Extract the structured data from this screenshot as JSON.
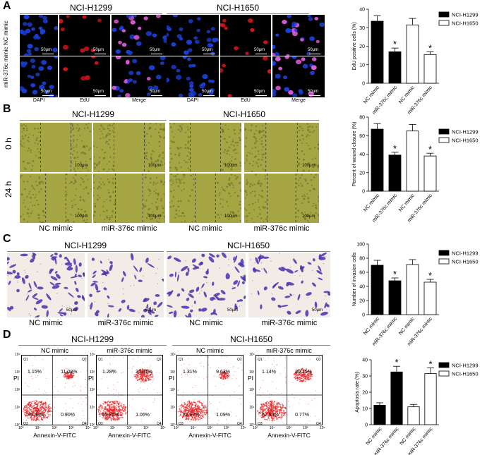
{
  "panels": {
    "A": {
      "label": "A",
      "headers": [
        "NCI-H1299",
        "NCI-H1650"
      ],
      "row_labels": [
        "NC mimic",
        "miR-376c mimic"
      ],
      "col_labels": [
        "DAPI",
        "EdU",
        "Merge",
        "DAPI",
        "EdU",
        "Merge"
      ],
      "scale": "50μm"
    },
    "B": {
      "label": "B",
      "headers": [
        "NCI-H1299",
        "NCI-H1650"
      ],
      "row_labels": [
        "0 h",
        "24 h"
      ],
      "col_labels": [
        "NC mimic",
        "miR-376c mimic",
        "NC mimic",
        "miR-376c mimic"
      ],
      "scale": "100μm"
    },
    "C": {
      "label": "C",
      "headers": [
        "NCI-H1299",
        "NCI-H1650"
      ],
      "col_labels": [
        "NC mimic",
        "miR-376c mimic",
        "NC mimic",
        "miR-376c mimic"
      ],
      "scale": "50μm"
    },
    "D": {
      "label": "D",
      "headers": [
        "NCI-H1299",
        "NCI-H1650"
      ],
      "plot_titles": [
        "NC mimic",
        "miR-376c mimic",
        "NC mimic",
        "miR-376c mimic"
      ],
      "xlabel": "Annexin-V-FITC",
      "ylabel": "PI",
      "quadrants": [
        {
          "q1": "1.15%",
          "q2": "11.08%",
          "q3": "86.88%",
          "q4": "0.90%"
        },
        {
          "q1": "1.28%",
          "q2": "31.81%",
          "q3": "65.85%",
          "q4": "1.06%"
        },
        {
          "q1": "1.31%",
          "q2": "9.63%",
          "q3": "87.97%",
          "q4": "1.09%"
        },
        {
          "q1": "1.14%",
          "q2": "30.15%",
          "q3": "67.94%",
          "q4": "0.77%"
        }
      ],
      "quad_ids": [
        "Q1",
        "Q2",
        "Q3",
        "Q4"
      ],
      "ticks": [
        "10⁰",
        "10¹",
        "10²",
        "10³",
        "10⁴"
      ]
    }
  },
  "legend": {
    "h1299": "NCI-H1299",
    "h1650": "NCI-H1650"
  },
  "colors": {
    "h1299": "#000000",
    "h1650": "#ffffff",
    "dapi": "#1a3fd8",
    "edu": "#d8141a",
    "crystal_violet": "#4a2fb0",
    "flow_dots": "#e8282a",
    "wound_bg": "#a5a544"
  },
  "chart_data": [
    {
      "type": "bar",
      "categories": [
        "NC mimic",
        "miR-376c mimic",
        "NC mimic",
        "miR-376c mimic"
      ],
      "series": [
        {
          "name": "NCI-H1299",
          "values": [
            33.5,
            17,
            null,
            null
          ],
          "errors": [
            3,
            2,
            null,
            null
          ]
        },
        {
          "name": "NCI-H1650",
          "values": [
            null,
            null,
            31.5,
            15.5
          ],
          "errors": [
            null,
            null,
            3.5,
            1.5
          ]
        }
      ],
      "significance": [
        "",
        "*",
        "",
        "*"
      ],
      "ylabel": "EdU positive cells (%)",
      "ylim": [
        0,
        40
      ],
      "yticks": [
        0,
        10,
        20,
        30,
        40
      ]
    },
    {
      "type": "bar",
      "categories": [
        "NC mimic",
        "miR-376c mimic",
        "NC mimic",
        "miR-376c mimic"
      ],
      "series": [
        {
          "name": "NCI-H1299",
          "values": [
            67,
            39,
            null,
            null
          ],
          "errors": [
            6,
            3,
            null,
            null
          ]
        },
        {
          "name": "NCI-H1650",
          "values": [
            null,
            null,
            65,
            38
          ],
          "errors": [
            null,
            null,
            7,
            3
          ]
        }
      ],
      "significance": [
        "",
        "*",
        "",
        "*"
      ],
      "ylabel": "Percent of wound closure (%)",
      "ylim": [
        0,
        80
      ],
      "yticks": [
        0,
        20,
        40,
        60,
        80
      ]
    },
    {
      "type": "bar",
      "categories": [
        "NC mimic",
        "miR-376c mimic",
        "NC mimic",
        "miR-376c mimic"
      ],
      "series": [
        {
          "name": "NCI-H1299",
          "values": [
            70,
            48,
            null,
            null
          ],
          "errors": [
            7,
            4,
            null,
            null
          ]
        },
        {
          "name": "NCI-H1650",
          "values": [
            null,
            null,
            71,
            46
          ],
          "errors": [
            null,
            null,
            7,
            4
          ]
        }
      ],
      "significance": [
        "",
        "*",
        "",
        "*"
      ],
      "ylabel": "Number of invasion cells",
      "ylim": [
        0,
        100
      ],
      "yticks": [
        0,
        20,
        40,
        60,
        80,
        100
      ]
    },
    {
      "type": "bar",
      "categories": [
        "NC mimic",
        "miR-376c mimic",
        "NC mimic",
        "miR-376c mimic"
      ],
      "series": [
        {
          "name": "NCI-H1299",
          "values": [
            12,
            32.5,
            null,
            null
          ],
          "errors": [
            1.5,
            3.5,
            null,
            null
          ]
        },
        {
          "name": "NCI-H1650",
          "values": [
            null,
            null,
            11,
            31.5
          ],
          "errors": [
            null,
            null,
            1.5,
            3.5
          ]
        }
      ],
      "significance": [
        "",
        "*",
        "",
        "*"
      ],
      "ylabel": "Apoptosis rate (%)",
      "ylim": [
        0,
        40
      ],
      "yticks": [
        0,
        10,
        20,
        30,
        40
      ]
    }
  ]
}
